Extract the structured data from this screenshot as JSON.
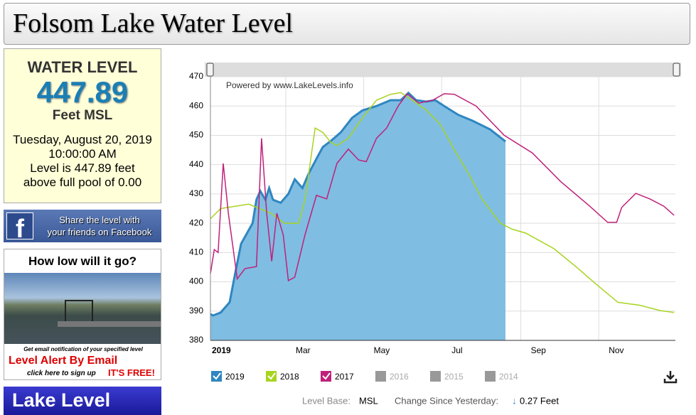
{
  "header": {
    "title": "Folsom Lake Water Level"
  },
  "level_box": {
    "heading": "WATER LEVEL",
    "level": 447.89,
    "unit": "Feet MSL",
    "date": "Tuesday, August 20, 2019",
    "time": "10:00:00 AM",
    "level_sentence": "Level is 447.89 feet",
    "full_pool_sentence": "above full pool of 0.00"
  },
  "facebook": {
    "line1": "Share the level with",
    "line2": "your friends on Facebook"
  },
  "alert_ad": {
    "headline": "How low will it go?",
    "note": "Get email notification of your specified level",
    "title": "Level Alert By Email",
    "signup": "click here to sign up",
    "free": "IT'S FREE!"
  },
  "banner": {
    "text": "Lake Level"
  },
  "status": {
    "base_label": "Level Base:",
    "base_value": "MSL",
    "change_label": "Change Since Yesterday:",
    "change_arrow": "↓",
    "change_value": "0.27 Feet"
  },
  "chart_data": {
    "type": "line",
    "credit": "Powered by www.LakeLevels.info",
    "xlim": [
      0,
      364
    ],
    "xticks": [
      {
        "value": 0,
        "label": "2019"
      },
      {
        "value": 59,
        "label": "Mar"
      },
      {
        "value": 120,
        "label": "May"
      },
      {
        "value": 181,
        "label": "Jul"
      },
      {
        "value": 243,
        "label": "Sep"
      },
      {
        "value": 304,
        "label": "Nov"
      }
    ],
    "ylim": [
      380,
      470
    ],
    "yticks": [
      380,
      390,
      400,
      410,
      420,
      430,
      440,
      450,
      460,
      470
    ],
    "grid": true,
    "series": [
      {
        "name": "2019",
        "color": "#2f86c0",
        "area": true,
        "x": [
          0,
          2,
          8,
          15,
          19,
          24,
          33,
          36,
          39,
          43,
          46,
          49,
          55,
          61,
          66,
          72,
          77,
          83,
          88,
          94,
          102,
          111,
          119,
          130,
          141,
          149,
          155,
          161,
          169,
          176,
          183,
          194,
          205,
          219,
          231
        ],
        "values": [
          389,
          388.5,
          389.5,
          393,
          402,
          413,
          420,
          428,
          431,
          428,
          432,
          428,
          427,
          430,
          435,
          432,
          437,
          442,
          446,
          448,
          451,
          456,
          458.5,
          460,
          462,
          462,
          464.5,
          462,
          461.5,
          462,
          460,
          457,
          455,
          452,
          447.89
        ]
      },
      {
        "name": "2018",
        "color": "#a8d420",
        "x": [
          0,
          8,
          30,
          47,
          58,
          69,
          74,
          82,
          88,
          94,
          99,
          108,
          119,
          130,
          141,
          149,
          158,
          169,
          180,
          191,
          202,
          213,
          227,
          236,
          247,
          269,
          286,
          302,
          319,
          336,
          352,
          363
        ],
        "values": [
          421.5,
          425,
          426.5,
          423.5,
          420,
          420,
          428,
          452.5,
          451,
          447.7,
          446.5,
          449,
          456,
          462,
          464,
          464.6,
          462,
          458.6,
          453.7,
          445,
          437,
          428,
          420,
          418,
          416.6,
          411.3,
          405.2,
          399.2,
          393,
          392,
          390.2,
          389.5
        ]
      },
      {
        "name": "2017",
        "color": "#c0207a",
        "x": [
          0,
          3,
          6,
          10,
          14,
          21,
          27,
          36,
          40,
          44,
          48,
          52,
          57,
          61,
          66,
          74,
          83,
          91,
          99,
          108,
          116,
          122,
          130,
          138,
          147,
          154,
          163,
          174,
          183,
          191,
          208,
          230,
          252,
          274,
          297,
          311,
          318,
          322,
          333,
          344,
          355,
          363
        ],
        "values": [
          402.8,
          411,
          410,
          440.4,
          423.4,
          401,
          404.5,
          405.2,
          449,
          423.4,
          407,
          423.4,
          416,
          400.4,
          401.6,
          416,
          429.5,
          428.3,
          440.4,
          445.3,
          441.6,
          441,
          449,
          452.5,
          460,
          464.2,
          461,
          462,
          464.2,
          464,
          460,
          450,
          444,
          434.3,
          425.8,
          420.3,
          420.3,
          425.4,
          430.2,
          428.3,
          425.8,
          422.7
        ]
      }
    ],
    "inactive_years": [
      "2016",
      "2015",
      "2014"
    ]
  }
}
